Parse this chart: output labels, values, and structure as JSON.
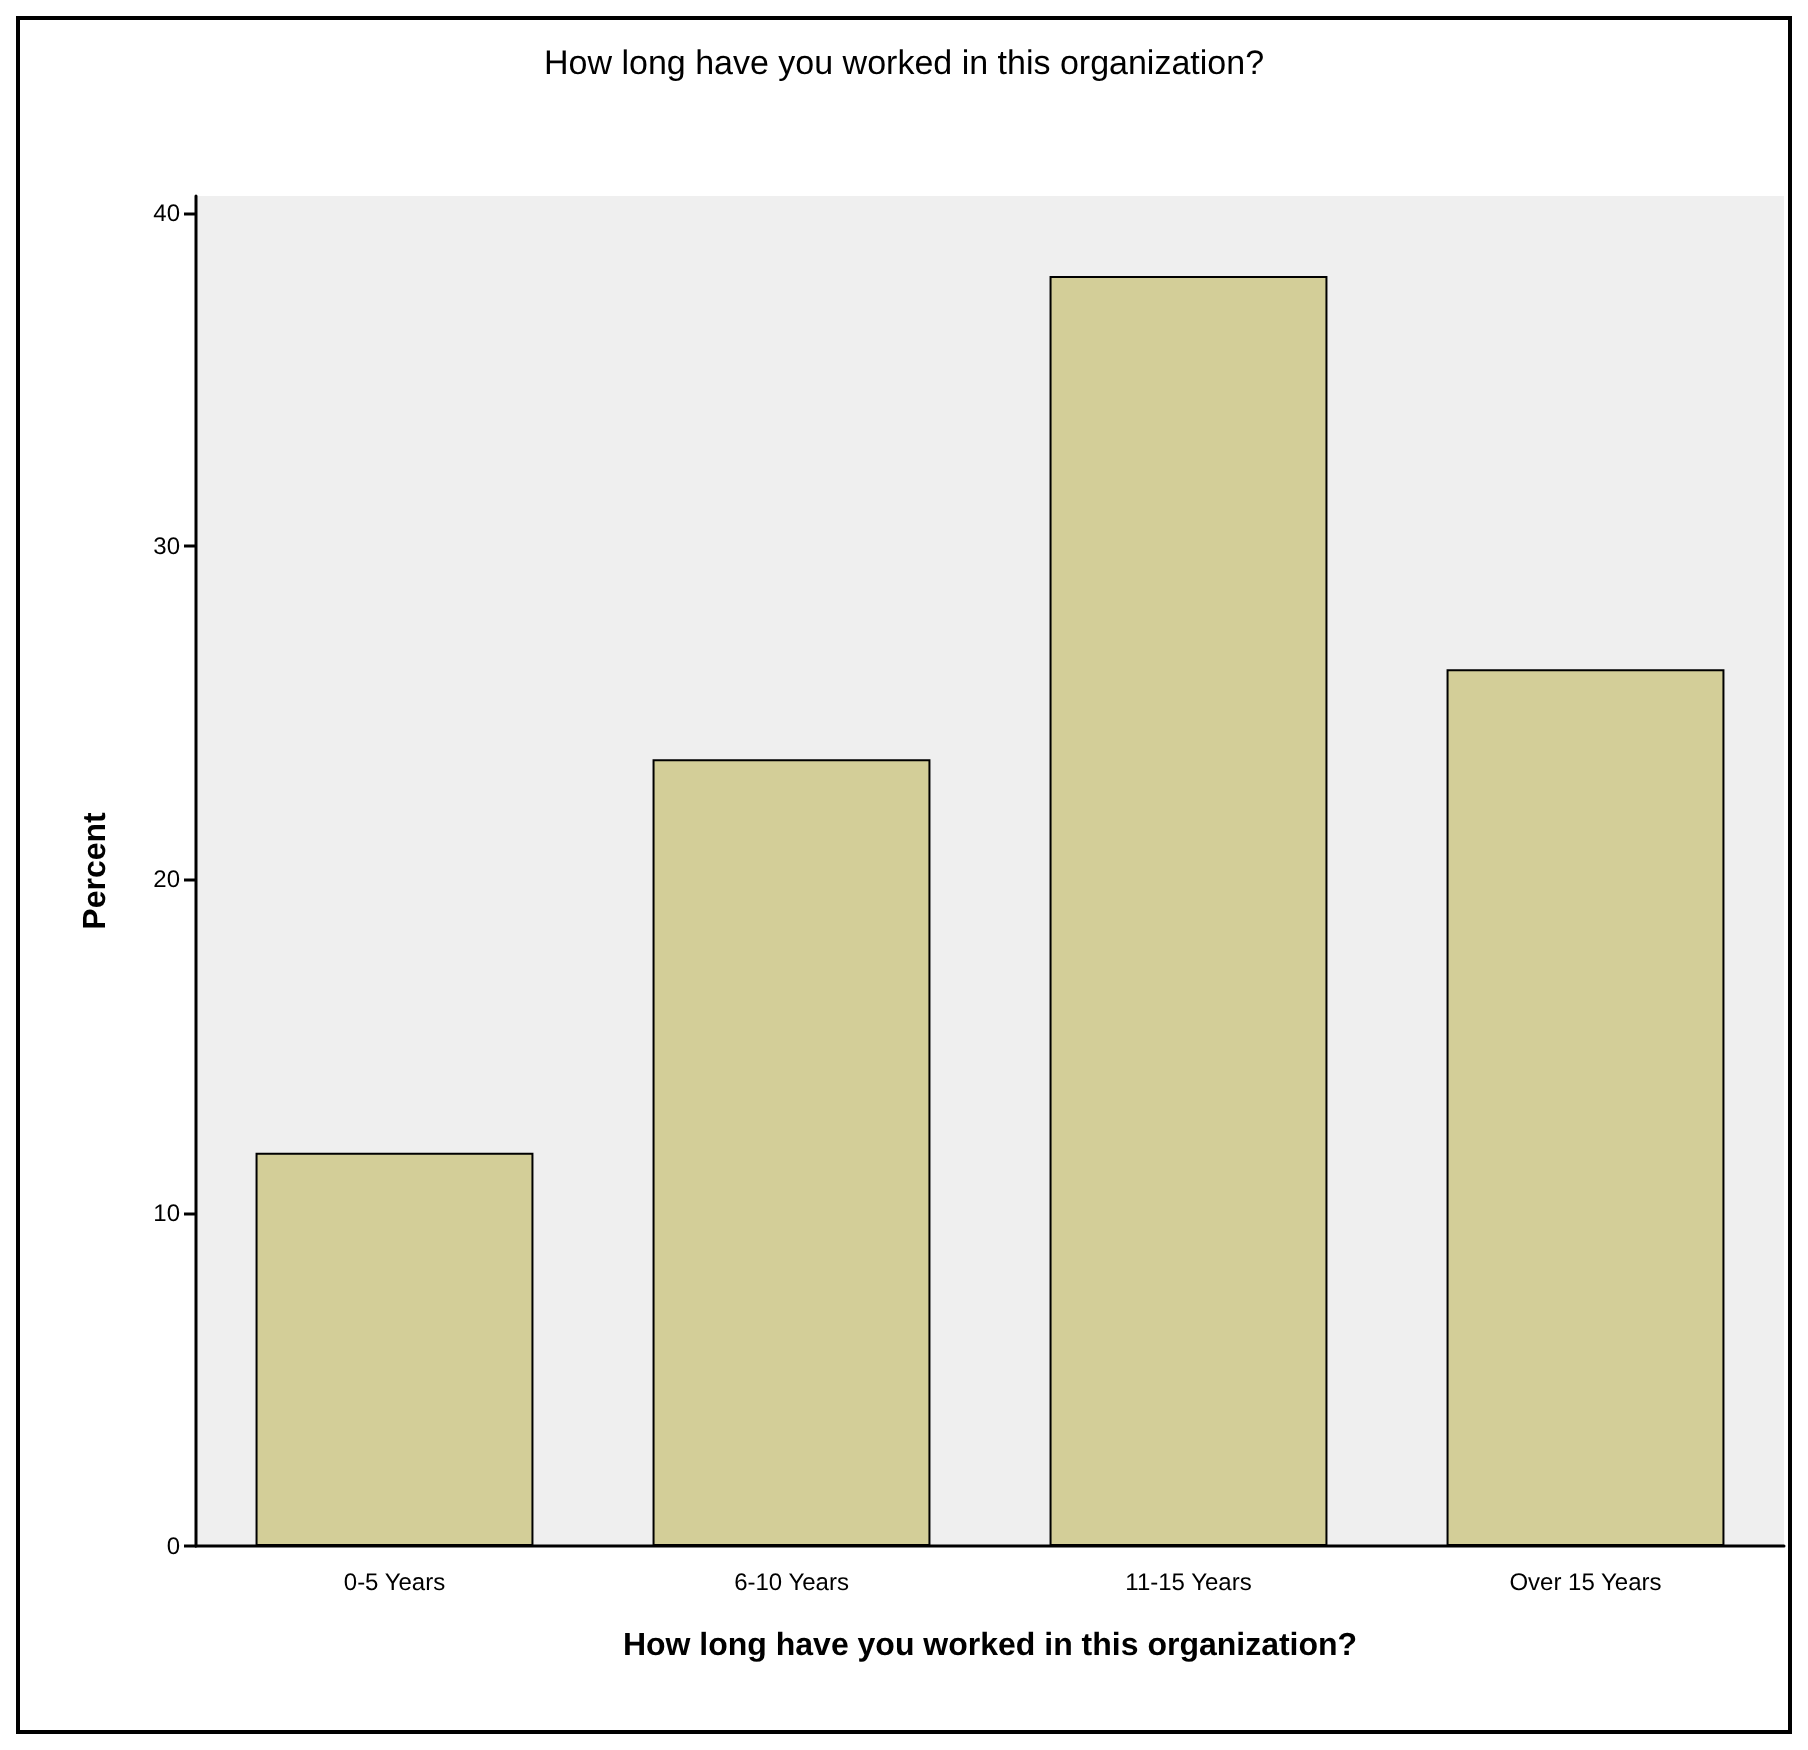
{
  "chart_data": {
    "type": "bar",
    "title": "How long have you worked in this organization?",
    "xlabel": "How long have you worked in this organization?",
    "ylabel": "Percent",
    "categories": [
      "0-5 Years",
      "6-10 Years",
      "11-15 Years",
      "Over 15 Years"
    ],
    "values": [
      11.8,
      23.6,
      38.1,
      26.3
    ],
    "color": "#d3ce98",
    "ylim": [
      0,
      40.5
    ],
    "yticks": [
      0,
      10,
      20,
      30,
      40
    ]
  }
}
